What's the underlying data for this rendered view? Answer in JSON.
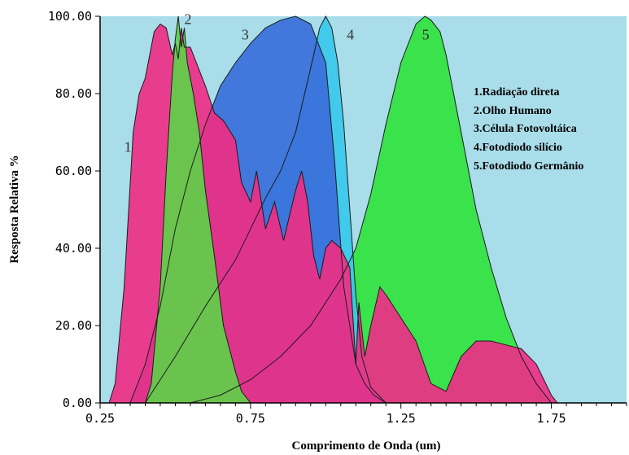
{
  "chart_data": {
    "type": "area",
    "xlabel": "Comprimento de Onda (um)",
    "ylabel": "Resposta Relativa %",
    "xlim": [
      0.25,
      2.0
    ],
    "ylim": [
      0,
      100
    ],
    "xticks": [
      "0.25",
      "0.75",
      "1.25",
      "1.75"
    ],
    "yticks": [
      "0.00",
      "20.00",
      "40.00",
      "60.00",
      "80.00",
      "100.00"
    ],
    "grid": false,
    "legend_position": "top-right",
    "legend": [
      "1.Radiação direta",
      "2.Olho Humano",
      "3.Célula Fotovoltáica",
      "4.Fotodiodo silício",
      "5.Fotodiodo Germânio"
    ],
    "colors": {
      "background": "#a8dde9",
      "radiacao": "#ee2f86",
      "olho": "#5fcf48",
      "celula": "#3a6fd9",
      "silicio": "#38c8ea",
      "germanio": "#31e23e"
    },
    "series": [
      {
        "name": "1",
        "x": [
          0.28,
          0.3,
          0.33,
          0.36,
          0.38,
          0.4,
          0.43,
          0.45,
          0.47,
          0.49,
          0.5,
          0.51,
          0.52,
          0.53,
          0.55,
          0.57,
          0.6,
          0.63,
          0.66,
          0.7,
          0.72,
          0.75,
          0.77,
          0.8,
          0.83,
          0.86,
          0.9,
          0.92,
          0.94,
          0.96,
          0.98,
          1.0,
          1.02,
          1.05,
          1.08,
          1.1,
          1.11,
          1.13,
          1.15,
          1.18,
          1.2,
          1.25,
          1.3,
          1.35,
          1.4,
          1.45,
          1.5,
          1.55,
          1.6,
          1.65,
          1.7,
          1.75,
          1.77
        ],
        "values": [
          0,
          5,
          30,
          70,
          80,
          84,
          96,
          98,
          97,
          90,
          93,
          89,
          97,
          92,
          92,
          88,
          82,
          75,
          73,
          68,
          57,
          52,
          60,
          45,
          52,
          42,
          55,
          60,
          52,
          38,
          32,
          40,
          42,
          40,
          35,
          10,
          26,
          12,
          20,
          30,
          28,
          22,
          16,
          5,
          3,
          12,
          16,
          16,
          15,
          14,
          10,
          2,
          0
        ]
      },
      {
        "name": "2",
        "x": [
          0.4,
          0.42,
          0.45,
          0.47,
          0.49,
          0.5,
          0.51,
          0.52,
          0.53,
          0.54,
          0.56,
          0.58,
          0.6,
          0.63,
          0.66,
          0.7,
          0.72,
          0.75
        ],
        "values": [
          0,
          5,
          30,
          60,
          85,
          94,
          100,
          92,
          97,
          88,
          80,
          70,
          55,
          38,
          20,
          8,
          3,
          0
        ]
      },
      {
        "name": "3",
        "x": [
          0.35,
          0.4,
          0.45,
          0.5,
          0.55,
          0.6,
          0.65,
          0.7,
          0.75,
          0.8,
          0.85,
          0.9,
          0.95,
          1.0,
          1.03,
          1.06,
          1.1,
          1.13,
          1.16,
          1.2
        ],
        "values": [
          0,
          10,
          25,
          45,
          60,
          72,
          82,
          88,
          93,
          97,
          99,
          100,
          98,
          88,
          62,
          30,
          10,
          5,
          2,
          0
        ]
      },
      {
        "name": "4",
        "x": [
          0.4,
          0.5,
          0.6,
          0.7,
          0.75,
          0.8,
          0.85,
          0.9,
          0.93,
          0.96,
          0.98,
          1.0,
          1.02,
          1.04,
          1.06,
          1.08,
          1.1,
          1.12,
          1.15,
          1.2
        ],
        "values": [
          0,
          12,
          25,
          37,
          45,
          53,
          60,
          70,
          80,
          90,
          97,
          100,
          97,
          88,
          72,
          50,
          28,
          12,
          4,
          0
        ]
      },
      {
        "name": "5",
        "x": [
          0.55,
          0.65,
          0.75,
          0.85,
          0.95,
          1.0,
          1.05,
          1.1,
          1.15,
          1.2,
          1.25,
          1.3,
          1.33,
          1.35,
          1.38,
          1.4,
          1.45,
          1.5,
          1.55,
          1.6,
          1.65,
          1.7,
          1.75
        ],
        "values": [
          0,
          2,
          6,
          12,
          20,
          26,
          32,
          40,
          54,
          72,
          88,
          98,
          100,
          99,
          96,
          90,
          70,
          50,
          35,
          22,
          12,
          5,
          0
        ]
      }
    ],
    "curve_labels": [
      "1",
      "2",
      "3",
      "4",
      "5"
    ]
  }
}
